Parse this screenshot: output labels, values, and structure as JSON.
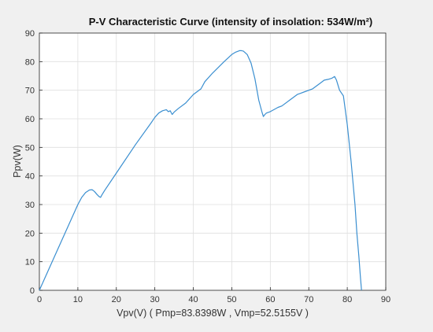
{
  "chart_data": {
    "type": "line",
    "title": "P-V Characteristic Curve (intensity of insolation: 534W/m²)",
    "xlabel": "Vpv(V) ( Pmp=83.8398W , Vmp=52.5155V )",
    "ylabel": "Ppv(W)",
    "xlim": [
      0,
      90
    ],
    "ylim": [
      0,
      90
    ],
    "xticks": [
      0,
      10,
      20,
      30,
      40,
      50,
      60,
      70,
      80,
      90
    ],
    "yticks": [
      0,
      10,
      20,
      30,
      40,
      50,
      60,
      70,
      80,
      90
    ],
    "grid": true,
    "line_color": "#3b8fd0",
    "series": [
      {
        "x": [
          0,
          5,
          10,
          11,
          12,
          13,
          13.7,
          14.3,
          15,
          15.5,
          15.9,
          16.3,
          17,
          20,
          25,
          29,
          30,
          31,
          32,
          33,
          33.5,
          34,
          34.5,
          35,
          36,
          38,
          40,
          42,
          43,
          45,
          48,
          50,
          51,
          52,
          52.5,
          53,
          54,
          55,
          56,
          57,
          57.8,
          58.2,
          58.6,
          59,
          60,
          62,
          63,
          65,
          67,
          69,
          71,
          73,
          74,
          75,
          76,
          76.7,
          77.2,
          78,
          79,
          80,
          81,
          82,
          82.5,
          83,
          83.4,
          83.7
        ],
        "y": [
          0,
          15,
          30,
          32.5,
          34.2,
          35.1,
          35.2,
          34.6,
          33.5,
          32.8,
          32.5,
          33.5,
          35,
          41,
          51,
          58.5,
          60.5,
          62,
          62.8,
          63.2,
          62.5,
          62.8,
          61.5,
          62.3,
          63.5,
          65.5,
          68.5,
          70.5,
          73,
          76,
          80,
          82.5,
          83.3,
          83.84,
          83.84,
          83.7,
          82.5,
          79.5,
          74,
          66.5,
          62.5,
          60.8,
          61.5,
          62,
          62.5,
          64,
          64.5,
          66.5,
          68.5,
          69.5,
          70.5,
          72.5,
          73.5,
          73.8,
          74.2,
          74.8,
          73.5,
          70,
          68,
          58,
          45,
          30,
          20,
          12,
          5,
          0
        ]
      }
    ]
  }
}
